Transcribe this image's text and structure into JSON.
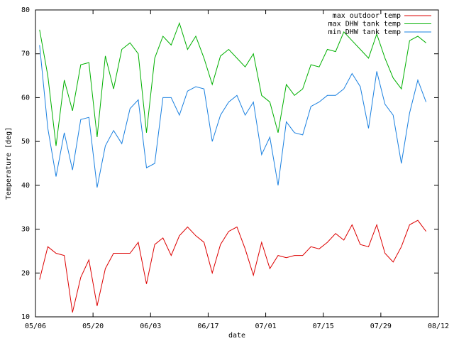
{
  "chart_data": {
    "type": "line",
    "x_label": "date",
    "y_label": "Temperature [deg]",
    "x": [
      "05/07",
      "05/09",
      "05/11",
      "05/13",
      "05/15",
      "05/17",
      "05/19",
      "05/21",
      "05/23",
      "05/25",
      "05/27",
      "05/29",
      "05/31",
      "06/02",
      "06/04",
      "06/06",
      "06/08",
      "06/10",
      "06/12",
      "06/14",
      "06/16",
      "06/18",
      "06/20",
      "06/22",
      "06/24",
      "06/26",
      "06/28",
      "06/30",
      "07/02",
      "07/04",
      "07/06",
      "07/08",
      "07/10",
      "07/12",
      "07/14",
      "07/16",
      "07/18",
      "07/20",
      "07/22",
      "07/24",
      "07/26",
      "07/28",
      "07/30",
      "08/01",
      "08/03",
      "08/05",
      "08/07",
      "08/09"
    ],
    "series": [
      {
        "name": "max outdoor temp",
        "color": "#dd0000",
        "values": [
          18.5,
          26,
          24.5,
          24,
          11,
          19,
          23,
          12.5,
          21,
          24.5,
          24.5,
          24.5,
          27,
          17.5,
          26.5,
          28,
          24,
          28.5,
          30.5,
          28.5,
          27,
          20,
          26.5,
          29.5,
          30.5,
          25.5,
          19.5,
          27,
          21,
          24,
          23.5,
          24,
          24,
          26,
          25.5,
          27,
          29,
          27.5,
          31,
          26.5,
          26,
          31,
          24.5,
          22.5,
          26,
          31,
          32,
          29.5
        ]
      },
      {
        "name": "max DHW tank temp",
        "color": "#00b000",
        "values": [
          75.5,
          65,
          49,
          64,
          57,
          67.5,
          68,
          51,
          69.5,
          62,
          71,
          72.5,
          70,
          52,
          69,
          74,
          72,
          77,
          71,
          74,
          69,
          63,
          69.5,
          71,
          69,
          67,
          70,
          60.5,
          59,
          52,
          63,
          60.5,
          62,
          67.5,
          67,
          71,
          70.5,
          75,
          73,
          71,
          69,
          74.5,
          69,
          64.5,
          62,
          73,
          74,
          72.5
        ]
      },
      {
        "name": "min DHW tank temp",
        "color": "#1a80e0",
        "values": [
          72,
          53,
          42,
          52,
          43.5,
          55,
          55.5,
          39.5,
          49,
          52.5,
          49.5,
          57.5,
          59.5,
          44,
          45,
          60,
          60,
          56,
          61.5,
          62.5,
          62,
          50,
          56,
          59,
          60.5,
          56,
          59,
          47,
          51,
          40,
          54.5,
          52,
          51.5,
          58,
          59,
          60.5,
          60.5,
          62,
          65.5,
          62.5,
          53,
          66,
          58.5,
          56,
          45,
          56.5,
          64,
          59
        ]
      }
    ],
    "xlim": [
      "05/06",
      "08/12"
    ],
    "xticks": [
      "05/06",
      "05/20",
      "06/03",
      "06/17",
      "07/01",
      "07/15",
      "07/29",
      "08/12"
    ],
    "ylim": [
      10,
      80
    ],
    "yticks": [
      10,
      20,
      30,
      40,
      50,
      60,
      70,
      80
    ],
    "legend": "top-right"
  }
}
